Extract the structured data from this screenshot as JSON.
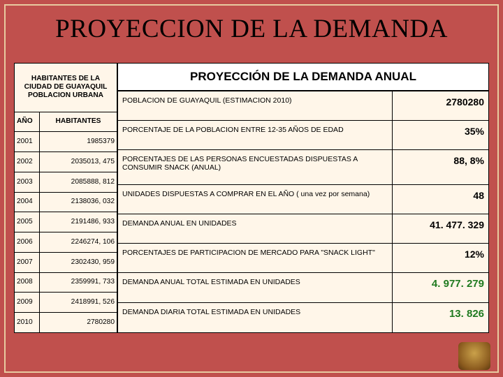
{
  "page": {
    "title": "PROYECCION DE LA DEMANDA",
    "bg_color": "#c0504d",
    "frame_color": "#e8cba0",
    "panel_bg": "#fff6e9"
  },
  "population_table": {
    "header_block": "HABITANTES DE LA CIUDAD DE GUAYAQUIL POBLACION URBANA",
    "col_year": "AÑO",
    "col_hab": "HABITANTES",
    "rows": [
      {
        "year": "2001",
        "value": "1985379"
      },
      {
        "year": "2002",
        "value": "2035013, 475"
      },
      {
        "year": "2003",
        "value": "2085888, 812"
      },
      {
        "year": "2004",
        "value": "2138036, 032"
      },
      {
        "year": "2005",
        "value": "2191486, 933"
      },
      {
        "year": "2006",
        "value": "2246274, 106"
      },
      {
        "year": "2007",
        "value": "2302430, 959"
      },
      {
        "year": "2008",
        "value": "2359991, 733"
      },
      {
        "year": "2009",
        "value": "2418991, 526"
      },
      {
        "year": "2010",
        "value": "2780280"
      }
    ]
  },
  "demand": {
    "heading": "PROYECCIÓN DE LA DEMANDA ANUAL",
    "rows": [
      {
        "label": "POBLACION DE GUAYAQUIL (ESTIMACION 2010)",
        "value": "2780280",
        "cls": ""
      },
      {
        "label": "PORCENTAJE DE LA POBLACION ENTRE 12-35 AÑOS DE EDAD",
        "value": "35%",
        "cls": ""
      },
      {
        "label": "PORCENTAJES DE LAS PERSONAS ENCUESTADAS DISPUESTAS A CONSUMIR SNACK (ANUAL)",
        "value": "88, 8%",
        "cls": ""
      },
      {
        "label": "UNIDADES DISPUESTAS A COMPRAR EN EL AÑO ( una vez por semana)",
        "value": "48",
        "cls": ""
      },
      {
        "label": "DEMANDA ANUAL EN UNIDADES",
        "value": "41. 477. 329",
        "cls": ""
      },
      {
        "label": "PORCENTAJES DE PARTICIPACION DE MERCADO PARA \"SNACK LIGHT\"",
        "value": "12%",
        "cls": ""
      },
      {
        "label": "DEMANDA ANUAL TOTAL ESTIMADA EN UNIDADES",
        "value": "4. 977. 279",
        "cls": "big-green"
      },
      {
        "label": "DEMANDA DIARIA TOTAL ESTIMADA EN UNIDADES",
        "value": "13. 826",
        "cls": "big-green"
      }
    ]
  }
}
